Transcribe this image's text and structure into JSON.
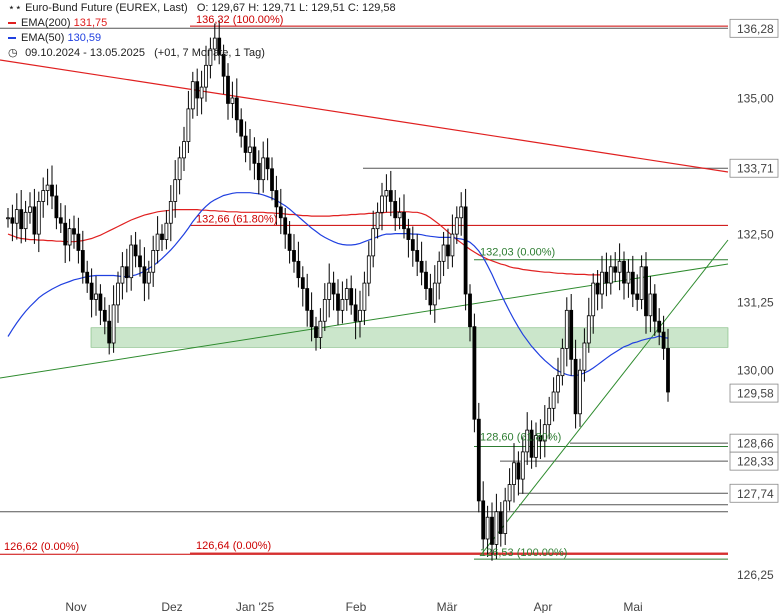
{
  "legend": {
    "instrument": "Euro-Bund Future (EUREX, Last)",
    "ohlc": "O: 129,67  H: 129,71  L: 129,51  C: 129,58",
    "ema200_label": "EMA(200)",
    "ema200_value": "131,75",
    "ema50_label": "EMA(50)",
    "ema50_value": "130,59",
    "range": "09.10.2024 - 13.05.2025",
    "range_detail": "(+01, 7 Monate, 1 Tag)"
  },
  "colors": {
    "ema200": "#e02020",
    "ema50": "#2040e0",
    "trend": "#2e8b2e",
    "fib_red": "#cc0000",
    "fib_green": "#2e7d32",
    "zone": "#a8d5a8",
    "candle": "#000000"
  },
  "chart_data": {
    "type": "candlestick",
    "ylim": [
      126.0,
      136.8
    ],
    "y_ticks": [
      {
        "value": 136.28,
        "label": "136,28",
        "highlight": true
      },
      {
        "value": 135.0,
        "label": "135,00"
      },
      {
        "value": 133.71,
        "label": "133,71",
        "highlight": true
      },
      {
        "value": 132.5,
        "label": "132,50"
      },
      {
        "value": 131.25,
        "label": "131,25"
      },
      {
        "value": 130.0,
        "label": "130,00"
      },
      {
        "value": 129.58,
        "label": "129,58",
        "highlight": true
      },
      {
        "value": 128.66,
        "label": "128,66",
        "highlight": true
      },
      {
        "value": 128.33,
        "label": "128,33",
        "highlight": true
      },
      {
        "value": 127.74,
        "label": "127,74",
        "highlight": true
      },
      {
        "value": 126.25,
        "label": "126,25"
      }
    ],
    "x_ticks": [
      "Nov",
      "Dez",
      "Jan '25",
      "Feb",
      "Mär",
      "Apr",
      "Mai"
    ],
    "fib_labels": [
      {
        "text": "136,32 (100.00%)",
        "value": 136.32,
        "color": "red"
      },
      {
        "text": "132,66 (61.80%)",
        "value": 132.66,
        "color": "red"
      },
      {
        "text": "126,62 (0.00%)",
        "value": 126.62,
        "color": "red"
      },
      {
        "text": "126,64 (0.00%)",
        "value": 126.64,
        "color": "red"
      },
      {
        "text": "132,03 (0.00%)",
        "value": 132.03,
        "color": "green"
      },
      {
        "text": "128,60 (61.80%)",
        "value": 128.6,
        "color": "green"
      },
      {
        "text": "126,53 (100.00%)",
        "value": 126.53,
        "color": "green"
      }
    ],
    "support_zone": [
      130.42,
      130.78
    ],
    "closes": [
      132.8,
      132.7,
      132.95,
      132.6,
      132.9,
      133.0,
      132.5,
      133.1,
      133.3,
      133.4,
      133.2,
      132.8,
      132.7,
      132.3,
      132.6,
      132.5,
      132.2,
      131.8,
      131.6,
      131.3,
      131.4,
      131.1,
      130.9,
      130.5,
      131.2,
      131.6,
      131.9,
      131.7,
      132.3,
      132.1,
      131.9,
      131.6,
      131.8,
      132.2,
      132.5,
      132.4,
      132.7,
      133.1,
      133.5,
      133.9,
      134.2,
      134.8,
      135.3,
      135.0,
      135.2,
      135.6,
      135.9,
      136.1,
      135.8,
      135.4,
      134.9,
      135.0,
      134.6,
      134.3,
      134.0,
      134.1,
      133.8,
      133.5,
      133.9,
      133.7,
      133.3,
      133.0,
      132.8,
      132.5,
      132.2,
      132.0,
      131.7,
      131.5,
      131.1,
      130.8,
      130.6,
      130.9,
      131.3,
      131.6,
      131.4,
      131.1,
      131.3,
      131.5,
      131.2,
      130.9,
      131.1,
      131.6,
      132.1,
      132.6,
      132.9,
      133.2,
      133.3,
      133.1,
      132.8,
      132.9,
      132.6,
      132.4,
      132.2,
      132.0,
      131.8,
      131.5,
      131.2,
      131.6,
      132.0,
      132.3,
      132.1,
      132.5,
      132.8,
      133.0,
      131.4,
      130.8,
      129.1,
      127.6,
      126.9,
      127.3,
      126.8,
      127.4,
      127.0,
      127.6,
      127.9,
      128.3,
      128.0,
      128.5,
      128.9,
      128.4,
      128.8,
      128.7,
      129.0,
      129.3,
      129.6,
      129.9,
      130.4,
      131.1,
      130.2,
      129.2,
      130.0,
      130.5,
      131.0,
      131.6,
      131.4,
      131.8,
      131.6,
      131.9,
      131.8,
      132.0,
      131.6,
      131.8,
      131.4,
      131.3,
      131.9,
      131.0,
      131.4,
      130.9,
      130.7,
      130.4,
      129.6
    ],
    "ema50": [
      130.62,
      130.75,
      130.87,
      130.98,
      131.08,
      131.17,
      131.25,
      131.33,
      131.39,
      131.44,
      131.49,
      131.53,
      131.57,
      131.6,
      131.63,
      131.66,
      131.68,
      131.7,
      131.72,
      131.73,
      131.74,
      131.74,
      131.74,
      131.74,
      131.74,
      131.73,
      131.72,
      131.72,
      131.73,
      131.75,
      131.78,
      131.82,
      131.87,
      131.92,
      131.98,
      132.05,
      132.13,
      132.21,
      132.3,
      132.4,
      132.5,
      132.61,
      132.73,
      132.83,
      132.93,
      133.01,
      133.08,
      133.13,
      133.17,
      133.21,
      133.23,
      133.25,
      133.26,
      133.26,
      133.26,
      133.26,
      133.25,
      133.24,
      133.22,
      133.19,
      133.16,
      133.12,
      133.07,
      133.02,
      132.96,
      132.89,
      132.82,
      132.75,
      132.68,
      132.61,
      132.55,
      132.49,
      132.44,
      132.4,
      132.36,
      132.33,
      132.31,
      132.3,
      132.3,
      132.31,
      132.33,
      132.36,
      132.39,
      132.42,
      132.45,
      132.48,
      132.5,
      132.5,
      132.51,
      132.51,
      132.51,
      132.51,
      132.5,
      132.5,
      132.49,
      132.47,
      132.46,
      132.45,
      132.44,
      132.44,
      132.44,
      132.44,
      132.42,
      132.41,
      132.39,
      132.35,
      132.28,
      132.19,
      132.07,
      131.92,
      131.76,
      131.58,
      131.41,
      131.24,
      131.08,
      130.93,
      130.79,
      130.66,
      130.55,
      130.44,
      130.35,
      130.26,
      130.18,
      130.11,
      130.04,
      129.99,
      129.95,
      129.92,
      129.9,
      129.9,
      129.92,
      129.95,
      129.99,
      130.04,
      130.1,
      130.16,
      130.22,
      130.28,
      130.33,
      130.38,
      130.43,
      130.46,
      130.5,
      130.52,
      130.55,
      130.57,
      130.59,
      130.6,
      130.63,
      130.6,
      130.59
    ],
    "ema200": [
      132.5,
      132.47,
      132.44,
      132.42,
      132.41,
      132.4,
      132.4,
      132.39,
      132.39,
      132.38,
      132.38,
      132.37,
      132.37,
      132.36,
      132.36,
      132.36,
      132.37,
      132.38,
      132.4,
      132.42,
      132.45,
      132.48,
      132.52,
      132.56,
      132.6,
      132.64,
      132.68,
      132.72,
      132.76,
      132.79,
      132.82,
      132.85,
      132.87,
      132.89,
      132.91,
      132.92,
      132.93,
      132.94,
      132.95,
      132.95,
      132.95,
      132.95,
      132.95,
      132.95,
      132.94,
      132.94,
      132.93,
      132.93,
      132.92,
      132.92,
      132.91,
      132.91,
      132.91,
      132.9,
      132.9,
      132.9,
      132.9,
      132.9,
      132.9,
      132.89,
      132.89,
      132.88,
      132.88,
      132.87,
      132.86,
      132.86,
      132.85,
      132.84,
      132.84,
      132.83,
      132.83,
      132.83,
      132.83,
      132.83,
      132.84,
      132.84,
      132.85,
      132.85,
      132.86,
      132.86,
      132.87,
      132.87,
      132.88,
      132.88,
      132.89,
      132.89,
      132.9,
      132.9,
      132.91,
      132.91,
      132.91,
      132.91,
      132.9,
      132.9,
      132.88,
      132.85,
      132.8,
      132.74,
      132.68,
      132.61,
      132.54,
      132.47,
      132.4,
      132.34,
      132.28,
      132.22,
      132.17,
      132.12,
      132.08,
      132.04,
      132.01,
      131.98,
      131.95,
      131.93,
      131.9,
      131.88,
      131.87,
      131.85,
      131.84,
      131.83,
      131.82,
      131.81,
      131.8,
      131.8,
      131.79,
      131.78,
      131.78,
      131.77,
      131.77,
      131.76,
      131.76,
      131.76,
      131.75,
      131.75,
      131.75,
      131.75
    ]
  }
}
